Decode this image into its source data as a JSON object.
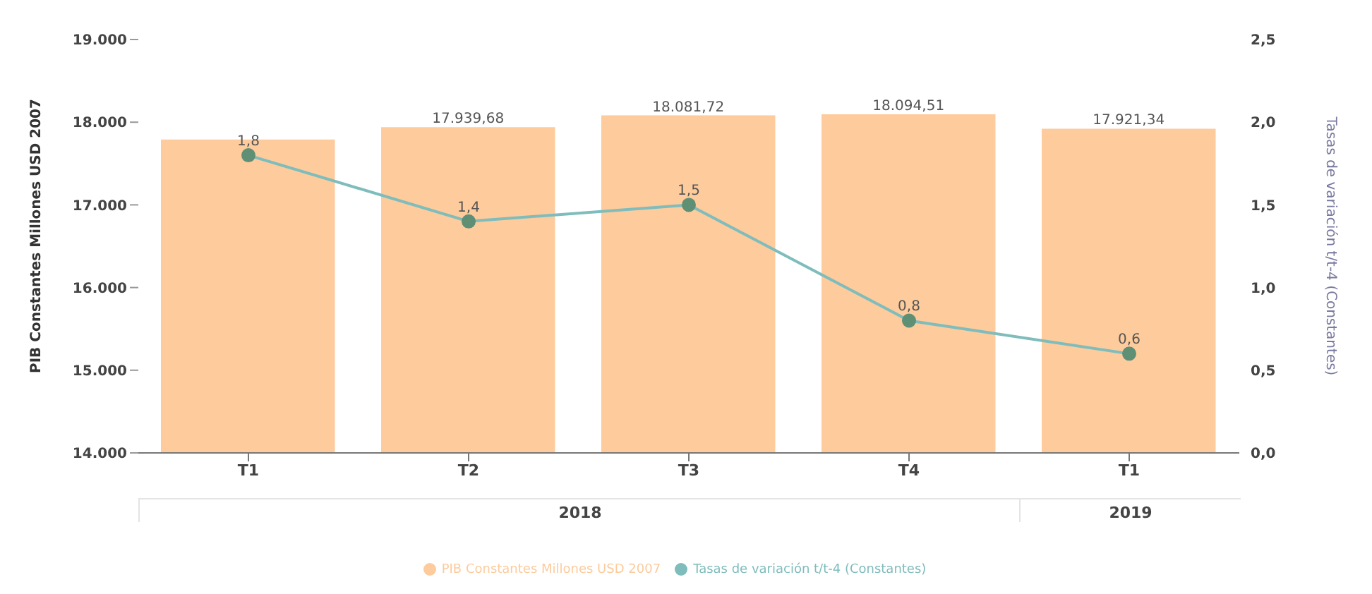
{
  "chart_data": {
    "type": "bar",
    "ylabel": "PIB Constantes Millones USD 2007",
    "y2label": "Tasas de variación t/t-4 (Constantes)",
    "categories": [
      "T1",
      "T2",
      "T3",
      "T4",
      "T1"
    ],
    "series": [
      {
        "name": "PIB Constantes Millones USD 2007",
        "color": "#fdcb9c",
        "values": [
          17790,
          17939.68,
          18081.72,
          18094.51,
          17921.34
        ],
        "value_labels": [
          null,
          "17.939,68",
          "18.081,72",
          "18.094,51",
          "17.921,34"
        ]
      },
      {
        "name": "Tasas de variación t/t-4 (Constantes)",
        "type": "line",
        "axis": "y2",
        "color": "#7fbcbc",
        "values": [
          1.8,
          1.4,
          1.5,
          0.8,
          0.6
        ],
        "value_labels": [
          "1,8",
          "1,4",
          "1,5",
          "0,8",
          "0,6"
        ]
      }
    ],
    "ylim": [
      14000,
      19000
    ],
    "yticks": [
      {
        "value": 14000,
        "label": "14.000"
      },
      {
        "value": 15000,
        "label": "15.000"
      },
      {
        "value": 16000,
        "label": "16.000"
      },
      {
        "value": 17000,
        "label": "17.000"
      },
      {
        "value": 18000,
        "label": "18.000"
      },
      {
        "value": 19000,
        "label": "19.000"
      }
    ],
    "y2lim": [
      0,
      2.5
    ],
    "y2ticks": [
      {
        "value": 0,
        "label": "0,0"
      },
      {
        "value": 0.5,
        "label": "0,5"
      },
      {
        "value": 1,
        "label": "1,0"
      },
      {
        "value": 1.5,
        "label": "1,5"
      },
      {
        "value": 2,
        "label": "2,0"
      },
      {
        "value": 2.5,
        "label": "2,5"
      }
    ],
    "annotations": [
      "2018",
      "2019"
    ],
    "marker": "circle",
    "legend": "bottom",
    "grid": false
  }
}
